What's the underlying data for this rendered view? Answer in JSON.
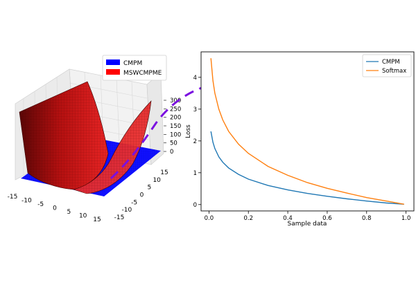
{
  "chart_data": [
    {
      "type": "surface3d",
      "legend": [
        {
          "label": "CMPM",
          "color": "#0000ff"
        },
        {
          "label": "MSWCMPME",
          "color": "#ff0000"
        }
      ],
      "legend_position": "top-right",
      "x_ticks": [
        -15,
        -10,
        -5,
        0,
        5,
        10,
        15
      ],
      "y_ticks": [
        -15,
        -10,
        -5,
        0,
        5,
        10,
        15
      ],
      "z_ticks": [
        0,
        50,
        100,
        150,
        200,
        250,
        300
      ],
      "series": [
        {
          "name": "CMPM",
          "shape": "flat plane",
          "z": 0
        },
        {
          "name": "MSWCMPME",
          "shape": "quadratic surface",
          "z_min": 0,
          "z_max": 300
        }
      ]
    },
    {
      "type": "line",
      "xlabel": "Sample data",
      "ylabel": "Loss",
      "xlim": [
        -0.04,
        1.04
      ],
      "ylim": [
        -0.2,
        4.8
      ],
      "x_ticks": [
        0.0,
        0.2,
        0.4,
        0.6,
        0.8,
        1.0
      ],
      "y_ticks": [
        0,
        1,
        2,
        3,
        4
      ],
      "legend_position": "top-right",
      "series": [
        {
          "name": "CMPM",
          "color": "#1f77b4",
          "x": [
            0.01,
            0.02,
            0.03,
            0.05,
            0.07,
            0.1,
            0.15,
            0.2,
            0.3,
            0.4,
            0.5,
            0.6,
            0.7,
            0.8,
            0.9,
            0.99
          ],
          "y": [
            2.3,
            1.96,
            1.76,
            1.5,
            1.33,
            1.15,
            0.95,
            0.8,
            0.6,
            0.46,
            0.35,
            0.26,
            0.18,
            0.11,
            0.05,
            0.01
          ]
        },
        {
          "name": "Softmax",
          "color": "#ff7f0e",
          "x": [
            0.01,
            0.02,
            0.03,
            0.05,
            0.07,
            0.1,
            0.15,
            0.2,
            0.3,
            0.4,
            0.5,
            0.6,
            0.7,
            0.8,
            0.9,
            0.99
          ],
          "y": [
            4.6,
            3.9,
            3.5,
            3.0,
            2.66,
            2.3,
            1.9,
            1.61,
            1.2,
            0.92,
            0.69,
            0.51,
            0.36,
            0.22,
            0.11,
            0.01
          ]
        }
      ]
    }
  ]
}
